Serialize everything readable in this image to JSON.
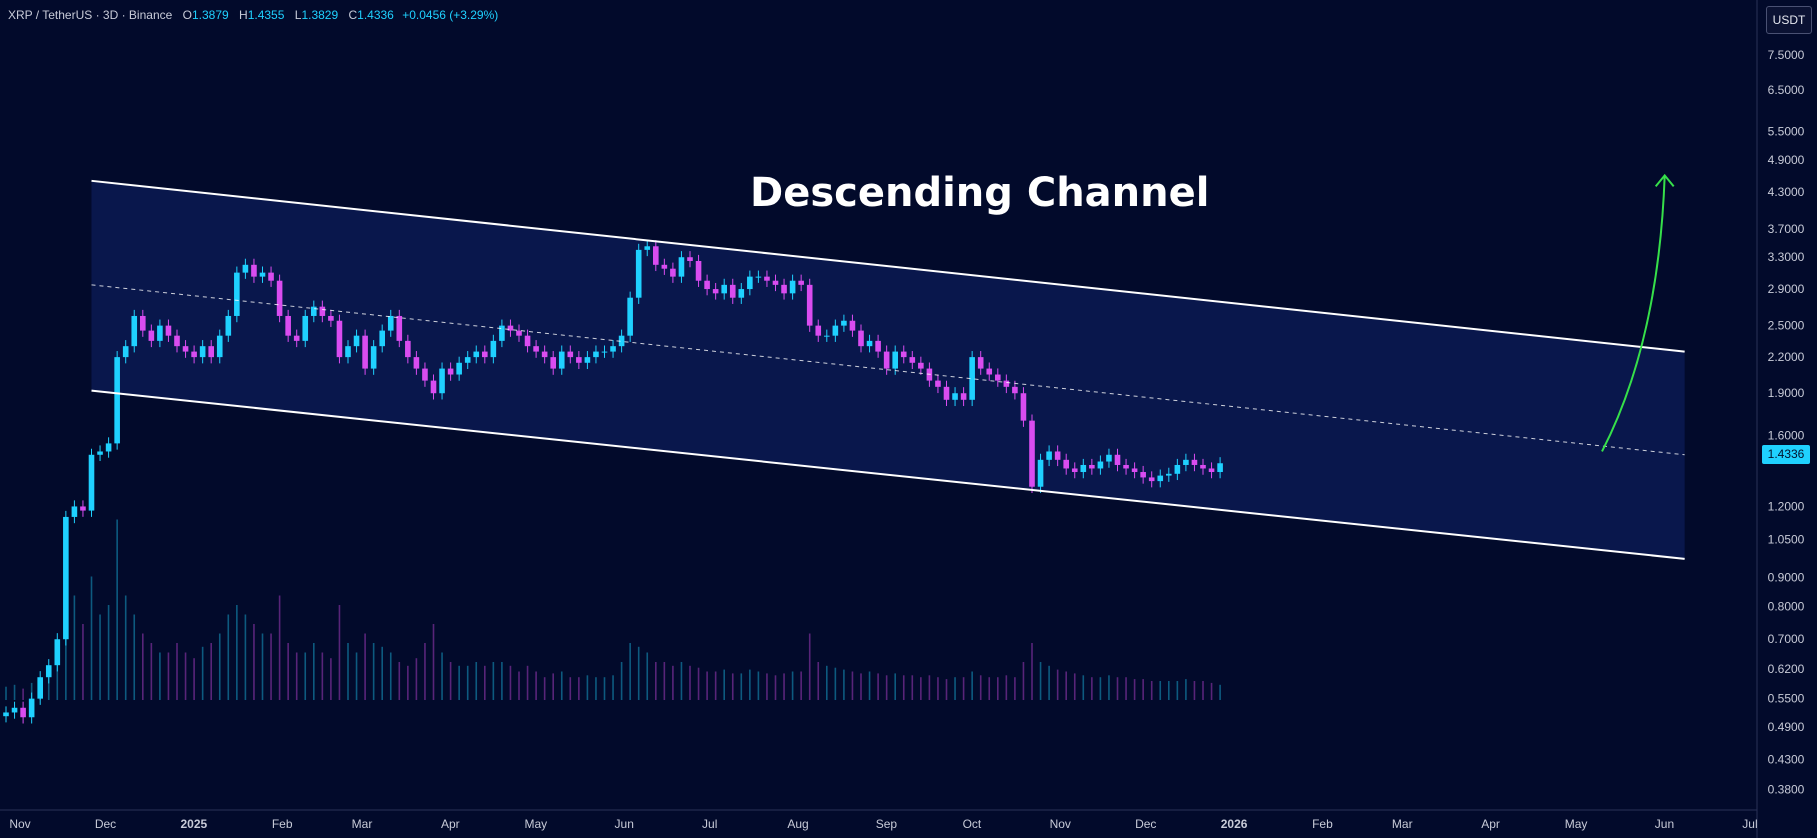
{
  "header": {
    "symbol": "XRP / TetherUS · 3D · Binance",
    "open_label": "O",
    "open": "1.3879",
    "high_label": "H",
    "high": "1.4355",
    "low_label": "L",
    "low": "1.3829",
    "close_label": "C",
    "close": "1.4336",
    "change": "+0.0456 (+3.29%)"
  },
  "currency_button": "USDT",
  "last_price_label": "1.4336",
  "colors": {
    "background": "#020a2b",
    "up": "#1fd1ff",
    "down": "#d94cf0",
    "channel_fill": "#0b1a52",
    "channel_line": "#ffffff",
    "arrow": "#36e04a"
  },
  "chart_data": {
    "type": "candlestick",
    "scale": "log",
    "title": "",
    "annotation": "Descending Channel",
    "price_range": [
      0.35,
      8.3
    ],
    "y_ticks": [
      "7.5000",
      "6.5000",
      "5.5000",
      "4.9000",
      "4.3000",
      "3.7000",
      "3.3000",
      "2.9000",
      "2.5000",
      "2.2000",
      "1.9000",
      "1.6000",
      "1.2000",
      "1.0500",
      "0.9000",
      "0.8000",
      "0.7000",
      "0.6200",
      "0.5500",
      "0.4900",
      "0.4300",
      "0.3800"
    ],
    "x_ticks": [
      "Nov",
      "Dec",
      "2025",
      "Feb",
      "Mar",
      "Apr",
      "May",
      "Jun",
      "Jul",
      "Aug",
      "Sep",
      "Oct",
      "Nov",
      "Dec",
      "2026",
      "Feb",
      "Mar",
      "Apr",
      "May",
      "Jun",
      "Jul"
    ],
    "bar_interval": "3D",
    "first_bar": "2024-11-01",
    "closes": [
      0.52,
      0.53,
      0.51,
      0.55,
      0.6,
      0.63,
      0.7,
      1.15,
      1.2,
      1.18,
      1.48,
      1.5,
      1.55,
      2.2,
      2.3,
      2.6,
      2.45,
      2.35,
      2.5,
      2.4,
      2.3,
      2.25,
      2.2,
      2.3,
      2.2,
      2.4,
      2.6,
      3.1,
      3.2,
      3.05,
      3.1,
      3.0,
      2.6,
      2.4,
      2.35,
      2.6,
      2.7,
      2.6,
      2.55,
      2.2,
      2.3,
      2.4,
      2.1,
      2.3,
      2.45,
      2.6,
      2.35,
      2.2,
      2.1,
      2.0,
      1.9,
      2.1,
      2.05,
      2.15,
      2.2,
      2.25,
      2.2,
      2.35,
      2.5,
      2.45,
      2.4,
      2.3,
      2.25,
      2.2,
      2.1,
      2.25,
      2.2,
      2.15,
      2.2,
      2.25,
      2.25,
      2.3,
      2.4,
      2.8,
      3.4,
      3.45,
      3.2,
      3.15,
      3.05,
      3.3,
      3.25,
      3.0,
      2.9,
      2.85,
      2.95,
      2.8,
      2.9,
      3.05,
      3.05,
      3.0,
      2.95,
      2.85,
      3.0,
      2.95,
      2.5,
      2.4,
      2.4,
      2.5,
      2.55,
      2.45,
      2.3,
      2.35,
      2.25,
      2.1,
      2.25,
      2.2,
      2.15,
      2.1,
      2.0,
      1.95,
      1.85,
      1.9,
      1.85,
      2.2,
      2.1,
      2.05,
      2.0,
      1.95,
      1.9,
      1.7,
      1.3,
      1.45,
      1.5,
      1.45,
      1.4,
      1.38,
      1.42,
      1.4,
      1.44,
      1.48,
      1.42,
      1.4,
      1.38,
      1.35,
      1.33,
      1.36,
      1.37,
      1.42,
      1.45,
      1.42,
      1.4,
      1.38,
      1.43
    ],
    "volume": [
      0.07,
      0.08,
      0.06,
      0.09,
      0.1,
      0.12,
      0.2,
      0.45,
      0.55,
      0.4,
      0.65,
      0.45,
      0.5,
      0.95,
      0.55,
      0.45,
      0.35,
      0.3,
      0.25,
      0.25,
      0.3,
      0.25,
      0.22,
      0.28,
      0.3,
      0.35,
      0.45,
      0.5,
      0.45,
      0.4,
      0.35,
      0.35,
      0.55,
      0.3,
      0.25,
      0.25,
      0.3,
      0.25,
      0.22,
      0.5,
      0.3,
      0.25,
      0.35,
      0.3,
      0.28,
      0.25,
      0.2,
      0.18,
      0.22,
      0.3,
      0.4,
      0.25,
      0.2,
      0.18,
      0.18,
      0.2,
      0.18,
      0.2,
      0.2,
      0.18,
      0.15,
      0.18,
      0.15,
      0.12,
      0.14,
      0.15,
      0.12,
      0.12,
      0.13,
      0.12,
      0.12,
      0.13,
      0.2,
      0.3,
      0.28,
      0.25,
      0.2,
      0.2,
      0.18,
      0.2,
      0.18,
      0.17,
      0.15,
      0.15,
      0.16,
      0.14,
      0.14,
      0.16,
      0.15,
      0.14,
      0.13,
      0.14,
      0.15,
      0.15,
      0.35,
      0.2,
      0.18,
      0.17,
      0.16,
      0.15,
      0.14,
      0.15,
      0.14,
      0.13,
      0.14,
      0.13,
      0.13,
      0.12,
      0.13,
      0.12,
      0.11,
      0.12,
      0.12,
      0.15,
      0.13,
      0.12,
      0.12,
      0.13,
      0.12,
      0.2,
      0.3,
      0.2,
      0.18,
      0.16,
      0.15,
      0.14,
      0.13,
      0.12,
      0.12,
      0.13,
      0.12,
      0.12,
      0.11,
      0.11,
      0.1,
      0.1,
      0.1,
      0.1,
      0.11,
      0.1,
      0.1,
      0.09,
      0.08
    ],
    "channel": {
      "upper": [
        [
          "2024-12-01",
          4.5
        ],
        [
          "2026-06-13",
          2.25
        ]
      ],
      "lower": [
        [
          "2024-12-01",
          1.92
        ],
        [
          "2026-06-13",
          0.97
        ]
      ],
      "mid": [
        [
          "2024-12-01",
          2.95
        ],
        [
          "2026-06-13",
          1.48
        ]
      ]
    },
    "arrow": {
      "from": [
        "2026-05-15",
        1.5
      ],
      "to": [
        "2026-06-06",
        4.6
      ]
    }
  }
}
